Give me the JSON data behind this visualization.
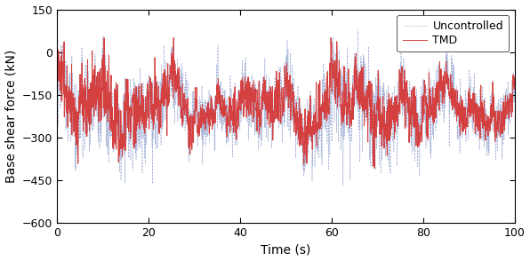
{
  "t_start": 0,
  "t_end": 100,
  "dt": 0.05,
  "ylim": [
    -600,
    150
  ],
  "xlim": [
    0,
    100
  ],
  "yticks": [
    -600,
    -450,
    -300,
    -150,
    0,
    150
  ],
  "xticks": [
    0,
    20,
    40,
    60,
    80,
    100
  ],
  "ylabel": "Base shear force (kN)",
  "xlabel": "Time (s)",
  "uncontrolled_color": "#a8b4d8",
  "tmd_color": "#d44040",
  "uncontrolled_label": "Uncontrolled",
  "tmd_label": "TMD",
  "uncontrolled_lw": 0.5,
  "tmd_lw": 0.7,
  "uncontrolled_ls": "--",
  "tmd_ls": "-",
  "fig_width": 5.96,
  "fig_height": 2.94,
  "dpi": 100,
  "mean_base": -200,
  "seed_unc": 10,
  "seed_tmd": 20
}
